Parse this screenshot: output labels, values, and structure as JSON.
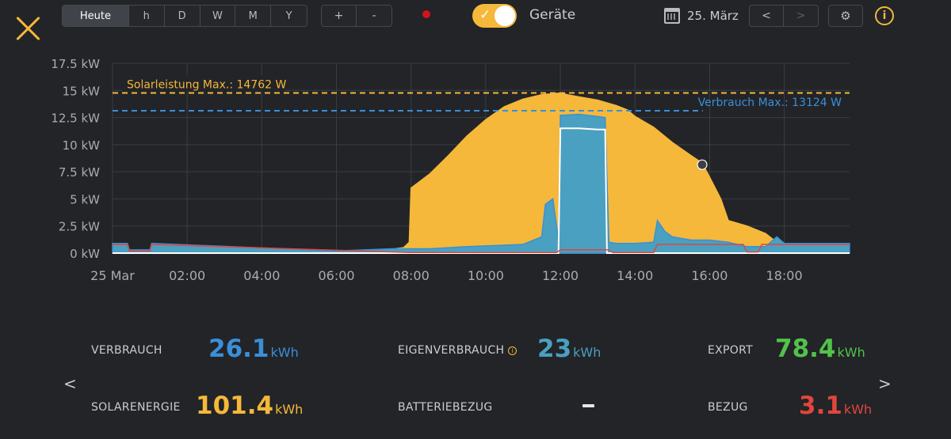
{
  "toolbar": {
    "period_buttons": [
      "Heute",
      "h",
      "D",
      "W",
      "M",
      "Y"
    ],
    "zoom_in": "+",
    "zoom_out": "-",
    "toggle_label": "Geräte",
    "toggle_on": true,
    "date": "25. März",
    "prev": "<",
    "next": ">",
    "settings_icon": "gear-icon",
    "info_icon": "info-icon",
    "info_glyph": "i",
    "close_icon": "close-icon"
  },
  "colors": {
    "solar": "#f5b83a",
    "consumption": "#4aa0c0",
    "consumption_line": "#3a8fd9",
    "device": "#ffffff",
    "grid_import": "#e0463c",
    "export": "#52c24a",
    "background": "#222428"
  },
  "chart_data": {
    "type": "area",
    "x_unit": "time (25 Mar)",
    "x_ticks": [
      "25 Mar",
      "02:00",
      "04:00",
      "06:00",
      "08:00",
      "10:00",
      "12:00",
      "14:00",
      "16:00",
      "18:00"
    ],
    "y_ticks": [
      "0 kW",
      "2.5 kW",
      "5 kW",
      "7.5 kW",
      "10 kW",
      "12.5 kW",
      "15 kW",
      "17.5 kW"
    ],
    "ylim": [
      0,
      17.5
    ],
    "xlim_hours": [
      0,
      19.75
    ],
    "grid": true,
    "series": [
      {
        "name": "Solarleistung",
        "kind": "area",
        "x": [
          0,
          6,
          7,
          7.8,
          7.95,
          8.0,
          8.5,
          9.0,
          9.5,
          10.0,
          10.5,
          11.0,
          11.5,
          12.0,
          12.2,
          12.5,
          13.0,
          13.5,
          13.8,
          14.0,
          14.5,
          15.0,
          15.5,
          15.8,
          16.0,
          16.3,
          16.5,
          17.0,
          17.5,
          17.8,
          18.0,
          18.2,
          18.5,
          19.75
        ],
        "y": [
          0,
          0,
          0.15,
          0.5,
          1.0,
          6.0,
          7.3,
          9.0,
          10.8,
          12.3,
          13.5,
          14.2,
          14.6,
          14.76,
          14.6,
          14.4,
          14.1,
          13.6,
          13.2,
          12.6,
          11.6,
          10.2,
          9.0,
          8.3,
          7.0,
          5.0,
          3.0,
          2.5,
          1.8,
          1.0,
          0.5,
          0.2,
          0.05,
          0
        ]
      },
      {
        "name": "Verbrauch",
        "kind": "area",
        "x": [
          0,
          0.4,
          0.45,
          1.0,
          1.05,
          6,
          7.5,
          8.5,
          9.5,
          11.0,
          11.5,
          11.6,
          11.8,
          11.95,
          12.0,
          12.5,
          13.0,
          13.2,
          13.3,
          13.5,
          14.0,
          14.5,
          14.6,
          14.8,
          15.0,
          15.5,
          16.0,
          16.5,
          17.0,
          17.5,
          17.8,
          18.0,
          18.5,
          19.75
        ],
        "y": [
          0.9,
          0.9,
          0.3,
          0.3,
          0.9,
          0.2,
          0.4,
          0.4,
          0.6,
          0.8,
          1.5,
          4.5,
          5.0,
          1.2,
          12.7,
          12.8,
          12.6,
          12.5,
          1.0,
          0.9,
          0.9,
          1.0,
          3.0,
          2.0,
          1.5,
          1.2,
          1.2,
          1.0,
          0.6,
          0.6,
          1.5,
          0.9,
          0.9,
          0.9
        ]
      },
      {
        "name": "Gerät",
        "kind": "line",
        "x": [
          0,
          11.95,
          12.0,
          12.5,
          13.0,
          13.2,
          13.25,
          19.75
        ],
        "y": [
          0,
          0,
          11.5,
          11.5,
          11.4,
          11.4,
          0,
          0
        ]
      },
      {
        "name": "Bezug",
        "kind": "line",
        "x": [
          0,
          0.4,
          0.45,
          1.0,
          1.05,
          8.0,
          11.9,
          12.0,
          13.3,
          13.4,
          14.5,
          14.6,
          16.9,
          17.0,
          17.3,
          17.4,
          18.0,
          19.75
        ],
        "y": [
          0.8,
          0.8,
          0.2,
          0.2,
          0.8,
          0.05,
          0.05,
          0.3,
          0.3,
          0.05,
          0.05,
          0.8,
          0.8,
          0.1,
          0.1,
          0.8,
          0.8,
          0.8
        ]
      }
    ],
    "annotations": [
      {
        "label": "Solarleistung Max.: 14762 W",
        "y": 14.762,
        "color": "#f5b83a"
      },
      {
        "label": "Verbrauch Max.: 13124 W",
        "y": 13.124,
        "color": "#3a8fd9"
      }
    ]
  },
  "stats": {
    "verbrauch": {
      "label": "VERBRAUCH",
      "value": "26.1",
      "unit": "kWh",
      "color": "#3a8fd9"
    },
    "eigenverbrauch": {
      "label": "EIGENVERBRAUCH",
      "value": "23",
      "unit": "kWh",
      "color": "#4aa0c0"
    },
    "export": {
      "label": "EXPORT",
      "value": "78.4",
      "unit": "kWh",
      "color": "#52c24a"
    },
    "solarenergie": {
      "label": "SOLARENERGIE",
      "value": "101.4",
      "unit": "kWh",
      "color": "#f5b83a"
    },
    "batteriebezug": {
      "label": "BATTERIEBEZUG",
      "value": "-"
    },
    "bezug": {
      "label": "BEZUG",
      "value": "3.1",
      "unit": "kWh",
      "color": "#e0463c"
    },
    "prev_arrow": "<",
    "next_arrow": ">"
  }
}
